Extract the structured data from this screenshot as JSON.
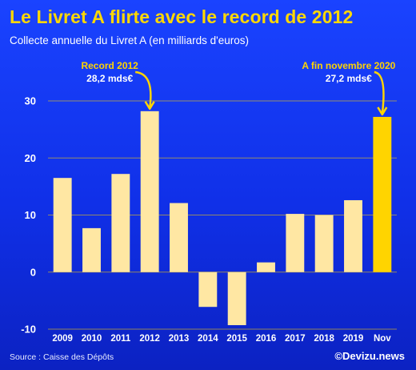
{
  "title": "Le Livret A flirte avec le record de 2012",
  "subtitle": "Collecte annuelle du Livret A (en milliards d'euros)",
  "source": "Source : Caisse des Dépôts",
  "brand": "©Devizu.news",
  "colors": {
    "background": "#1538f5",
    "bar": "#ffe7a3",
    "highlight_bar": "#ffd400",
    "title": "#ffd800",
    "grid": "#ffd400",
    "annotation_yellow": "#ffd400"
  },
  "chart_data": {
    "type": "bar",
    "categories": [
      "2009",
      "2010",
      "2011",
      "2012",
      "2013",
      "2014",
      "2015",
      "2016",
      "2017",
      "2018",
      "2019",
      "Nov"
    ],
    "values": [
      16.5,
      7.7,
      17.2,
      28.2,
      12.1,
      -6.1,
      -9.3,
      1.7,
      10.2,
      10.0,
      12.6,
      27.2
    ],
    "highlight_category": "Nov",
    "y_ticks": [
      30,
      20,
      10,
      0,
      -10
    ],
    "ylim": [
      -10,
      30
    ],
    "grid": true,
    "annotations": [
      {
        "category": "2012",
        "lines": [
          "Record 2012",
          "28,2 mds€"
        ]
      },
      {
        "category": "Nov",
        "lines": [
          "A fin novembre 2020",
          "27,2 mds€"
        ]
      }
    ]
  }
}
